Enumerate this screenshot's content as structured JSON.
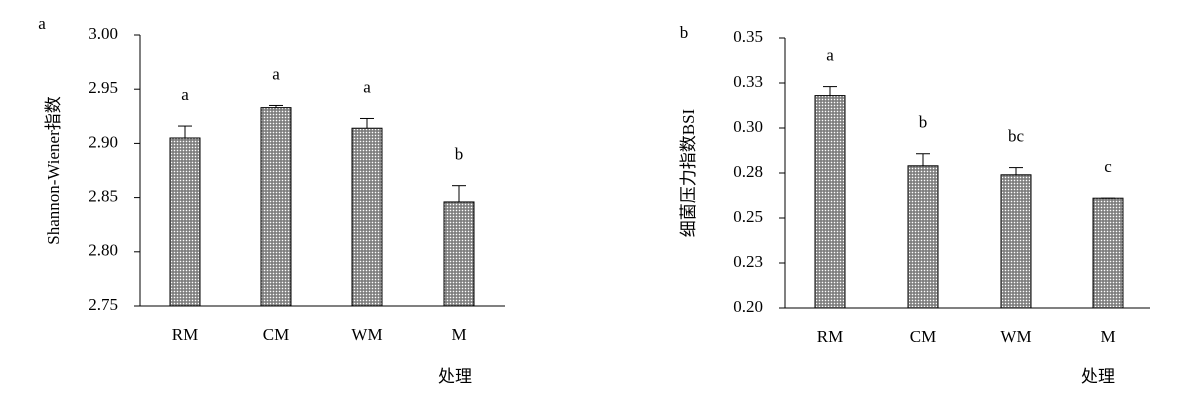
{
  "chart_data": [
    {
      "type": "bar",
      "panel": "a",
      "ylabel": "Shannon-Wiener指数",
      "xlabel": "处理",
      "categories": [
        "RM",
        "CM",
        "WM",
        "M"
      ],
      "values": [
        2.905,
        2.933,
        2.914,
        2.846
      ],
      "errors": [
        0.011,
        0.002,
        0.009,
        0.015
      ],
      "letters": [
        "a",
        "a",
        "a",
        "b"
      ],
      "color": "#9a9a9a",
      "ylim": [
        2.75,
        3.0
      ],
      "yticks": [
        2.75,
        {
          "value": 2.8,
          "label": "2.80"
        },
        2.85,
        {
          "value": 2.9,
          "label": "2.90"
        },
        2.95,
        {
          "value": 3.0,
          "label": "3.00"
        }
      ]
    },
    {
      "type": "bar",
      "panel": "b",
      "ylabel": "细菌压力指数BSI",
      "xlabel": "处理",
      "categories": [
        "RM",
        "CM",
        "WM",
        "M"
      ],
      "values": [
        0.318,
        0.279,
        0.274,
        0.261
      ],
      "errors": [
        0.005,
        0.0067,
        0.004,
        0
      ],
      "letters": [
        "a",
        "b",
        "bc",
        "c"
      ],
      "color": "#9a9a9a",
      "ylim": [
        0.2,
        0.35
      ],
      "yticks": [
        {
          "value": 0.2,
          "label": "0.20"
        },
        {
          "value": 0.225,
          "label": "0.23"
        },
        0.25,
        {
          "value": 0.275,
          "label": "0.28"
        },
        {
          "value": 0.3,
          "label": "0.30"
        },
        {
          "value": 0.325,
          "label": "0.33"
        },
        0.35
      ]
    }
  ]
}
